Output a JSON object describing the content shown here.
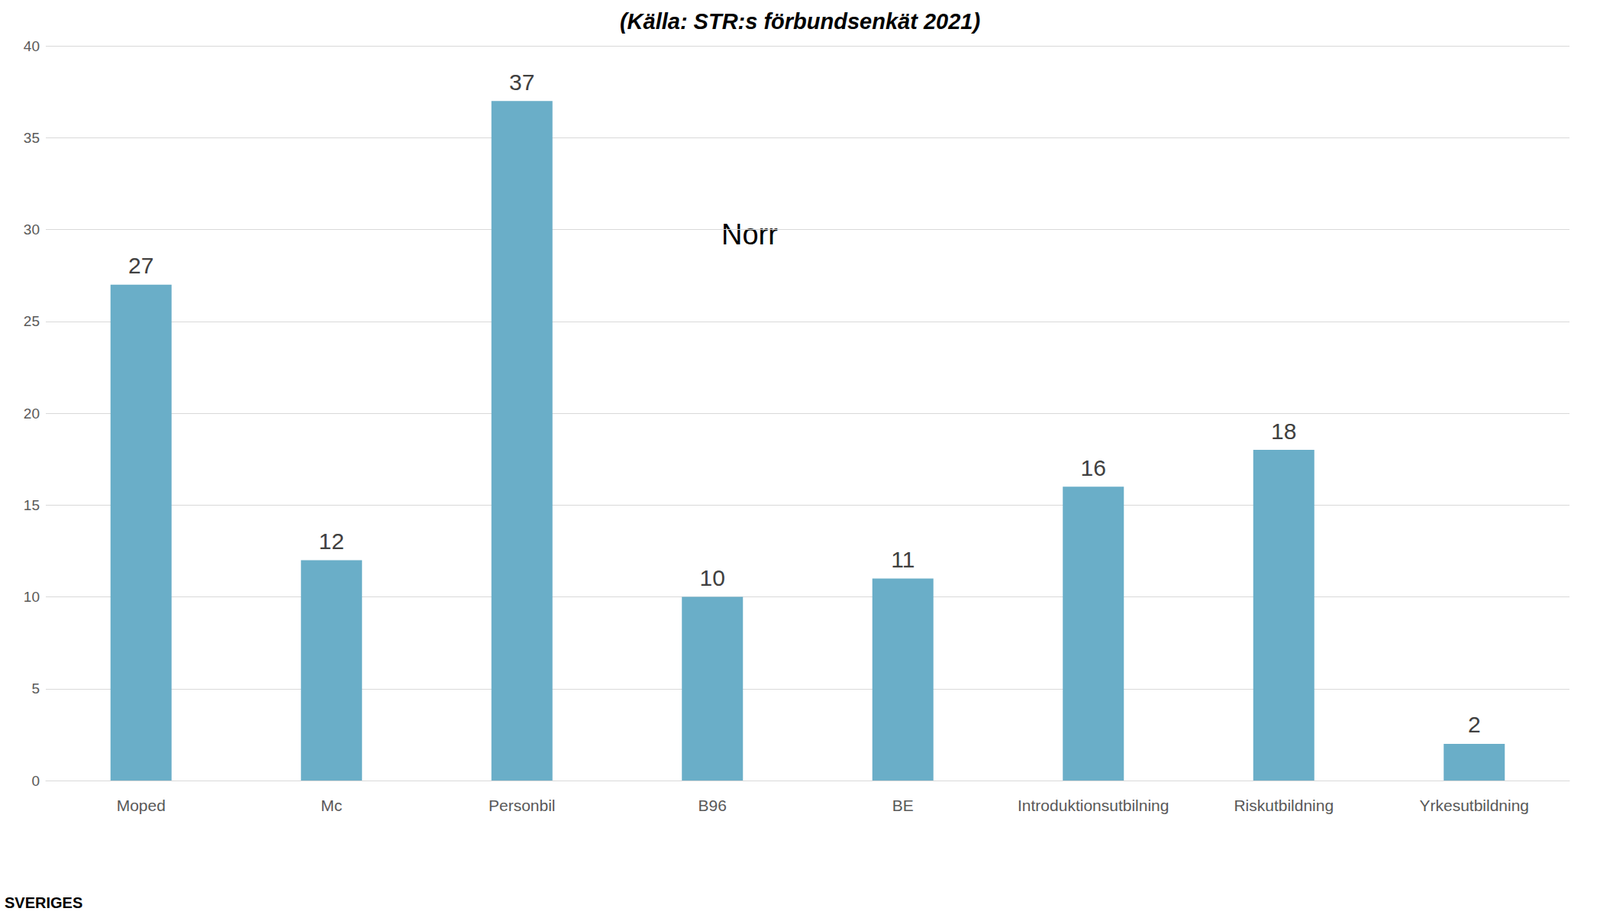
{
  "chart_data": {
    "type": "bar",
    "title": "(Källa: STR:s förbundsenkät 2021)",
    "annotation": "Norr",
    "footer": "SVERIGES",
    "categories": [
      "Moped",
      "Mc",
      "Personbil",
      "B96",
      "BE",
      "Introduktionsutbilning",
      "Riskutbildning",
      "Yrkesutbildning"
    ],
    "values": [
      27,
      12,
      37,
      10,
      11,
      16,
      18,
      2
    ],
    "color": "#6aaec8",
    "ylim": [
      0,
      40
    ],
    "yticks": [
      0,
      5,
      10,
      15,
      20,
      25,
      30,
      35,
      40
    ],
    "grid": true,
    "data_labels": true
  }
}
